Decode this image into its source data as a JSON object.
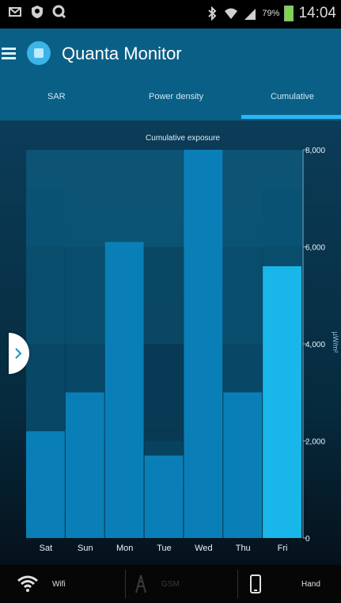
{
  "status_bar": {
    "time": "14:04",
    "battery_percent": "79%",
    "icons": [
      "message-icon",
      "shield-icon",
      "q-icon",
      "bluetooth-icon",
      "wifi-icon",
      "signal-icon",
      "battery-icon"
    ]
  },
  "app_bar": {
    "title": "Quanta Monitor",
    "menu_icon": "menu-icon",
    "logo_icon": "app-logo-icon"
  },
  "tabs": [
    {
      "label": "SAR",
      "selected": false
    },
    {
      "label": "Power density",
      "selected": false
    },
    {
      "label": "Cumulative",
      "selected": true
    }
  ],
  "chart_data": {
    "type": "bar",
    "title": "Cumulative exposure",
    "categories": [
      "Sat",
      "Sun",
      "Mon",
      "Tue",
      "Wed",
      "Thu",
      "Fri"
    ],
    "values": [
      2200,
      3000,
      6100,
      1700,
      8000,
      3000,
      5600
    ],
    "background_levels": [
      7200,
      6000,
      6000,
      2000,
      8000,
      6000,
      7200
    ],
    "ylabel": "µW/m²",
    "ylim": [
      0,
      8000
    ],
    "y_ticks": [
      "0",
      "2,000",
      "4,000",
      "6,000",
      "8,000"
    ],
    "y_tick_values": [
      0,
      2000,
      4000,
      6000,
      8000
    ],
    "highlight_index": 6,
    "colors": {
      "bar": "#0a7fb7",
      "bar_highlight": "#19b7e9",
      "band": "#0b4a68"
    }
  },
  "bottom_bar": {
    "items": [
      {
        "label": "Wifi",
        "icon": "wifi-icon",
        "active": true
      },
      {
        "label": "GSM",
        "icon": "tower-icon",
        "active": false
      },
      {
        "label": "Hand",
        "icon": "phone-icon",
        "active": true
      }
    ]
  },
  "side_arrow": {
    "icon": "chevron-right-icon"
  }
}
